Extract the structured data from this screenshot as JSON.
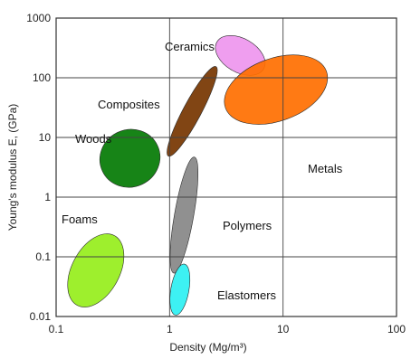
{
  "chart_data": {
    "type": "scatter",
    "xscale": "log",
    "yscale": "log",
    "xlim": [
      0.1,
      100
    ],
    "ylim": [
      0.01,
      1000
    ],
    "xticks": [
      "0.1",
      "1",
      "10",
      "100"
    ],
    "yticks": [
      "0.01",
      "0.1",
      "1",
      "10",
      "100",
      "1000"
    ],
    "xlabel": "Density  (Mg/m³)",
    "ylabel": "Young's modulus E, (GPa)",
    "grid": true,
    "regions": [
      {
        "name": "Foams",
        "color": "#99ee22",
        "density_range": [
          0.1,
          0.5
        ],
        "modulus_range": [
          0.01,
          0.35
        ],
        "label": "Foams"
      },
      {
        "name": "Woods",
        "color": "#0b7d0b",
        "density_range": [
          0.2,
          1.0
        ],
        "modulus_range": [
          1,
          20
        ],
        "label": "Woods"
      },
      {
        "name": "Composites",
        "color": "#7a3b07",
        "density_range": [
          1.0,
          2.5
        ],
        "modulus_range": [
          5,
          150
        ],
        "label": "Composites"
      },
      {
        "name": "Ceramics",
        "color": "#ee99ee",
        "density_range": [
          2.2,
          8.0
        ],
        "modulus_range": [
          80,
          700
        ],
        "label": "Ceramics"
      },
      {
        "name": "Metals",
        "color": "#ff6f00",
        "density_range": [
          2.5,
          30
        ],
        "modulus_range": [
          10,
          400
        ],
        "label": "Metals"
      },
      {
        "name": "Polymers",
        "color": "#8a8a8a",
        "density_range": [
          0.9,
          2.0
        ],
        "modulus_range": [
          0.05,
          5
        ],
        "label": "Polymers"
      },
      {
        "name": "Elastomers",
        "color": "#33f0f2",
        "density_range": [
          0.95,
          1.6
        ],
        "modulus_range": [
          0.01,
          0.08
        ],
        "label": "Elastomers"
      }
    ]
  }
}
